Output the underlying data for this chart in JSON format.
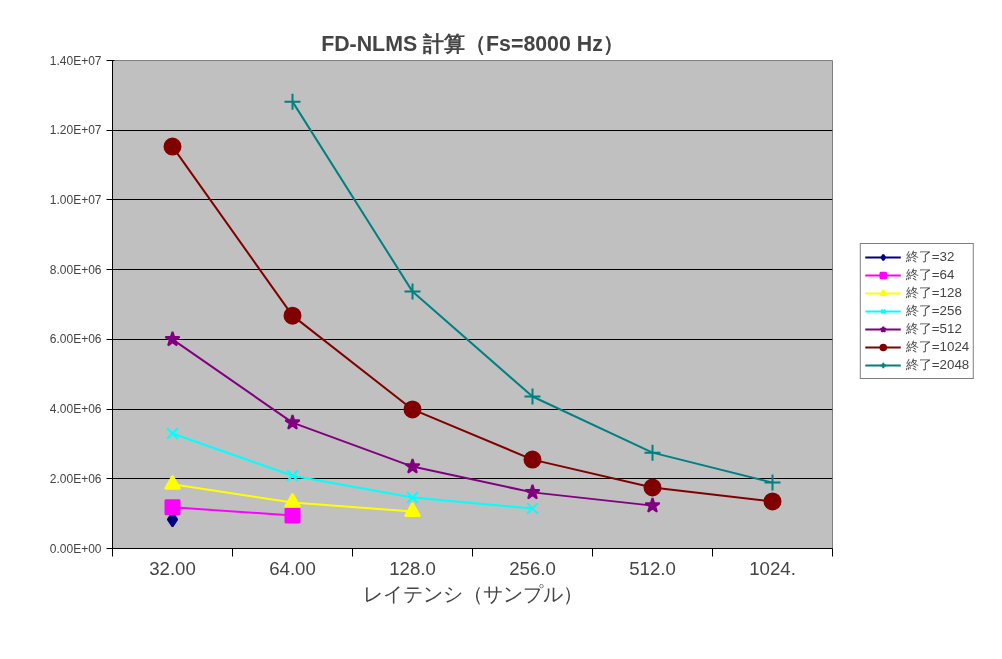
{
  "chart_data": {
    "type": "line",
    "title": "FD-NLMS 計算（Fs=8000 Hz）",
    "xlabel": "レイテンシ（サンプル）",
    "categories": [
      "32.00",
      "64.00",
      "128.0",
      "256.0",
      "512.0",
      "1024."
    ],
    "ylim": [
      0,
      14000000
    ],
    "yticks": [
      {
        "value": 0,
        "label": "0.00E+00"
      },
      {
        "value": 2000000,
        "label": "2.00E+06"
      },
      {
        "value": 4000000,
        "label": "4.00E+06"
      },
      {
        "value": 6000000,
        "label": "6.00E+06"
      },
      {
        "value": 8000000,
        "label": "8.00E+06"
      },
      {
        "value": 10000000,
        "label": "1.00E+07"
      },
      {
        "value": 12000000,
        "label": "1.20E+07"
      },
      {
        "value": 14000000,
        "label": "1.40E+07"
      }
    ],
    "grid": "y",
    "legend": "right",
    "series": [
      {
        "name": "終了=32",
        "color": "#000080",
        "marker": "diamond",
        "values": [
          830000,
          null,
          null,
          null,
          null,
          null
        ]
      },
      {
        "name": "終了=64",
        "color": "#ff00ff",
        "marker": "square",
        "values": [
          1180000,
          950000,
          null,
          null,
          null,
          null
        ]
      },
      {
        "name": "終了=128",
        "color": "#ffff00",
        "marker": "triangle",
        "values": [
          1840000,
          1320000,
          1060000,
          null,
          null,
          null
        ]
      },
      {
        "name": "終了=256",
        "color": "#00ffff",
        "marker": "x",
        "values": [
          3300000,
          2090000,
          1460000,
          1150000,
          null,
          null
        ]
      },
      {
        "name": "終了=512",
        "color": "#800080",
        "marker": "star",
        "values": [
          6000000,
          3610000,
          2350000,
          1610000,
          1230000,
          null
        ]
      },
      {
        "name": "終了=1024",
        "color": "#800000",
        "marker": "circle",
        "values": [
          11530000,
          6680000,
          3990000,
          2550000,
          1750000,
          1350000
        ]
      },
      {
        "name": "終了=2048",
        "color": "#008080",
        "marker": "cross",
        "values": [
          null,
          12820000,
          7370000,
          4360000,
          2750000,
          1890000
        ]
      }
    ]
  }
}
